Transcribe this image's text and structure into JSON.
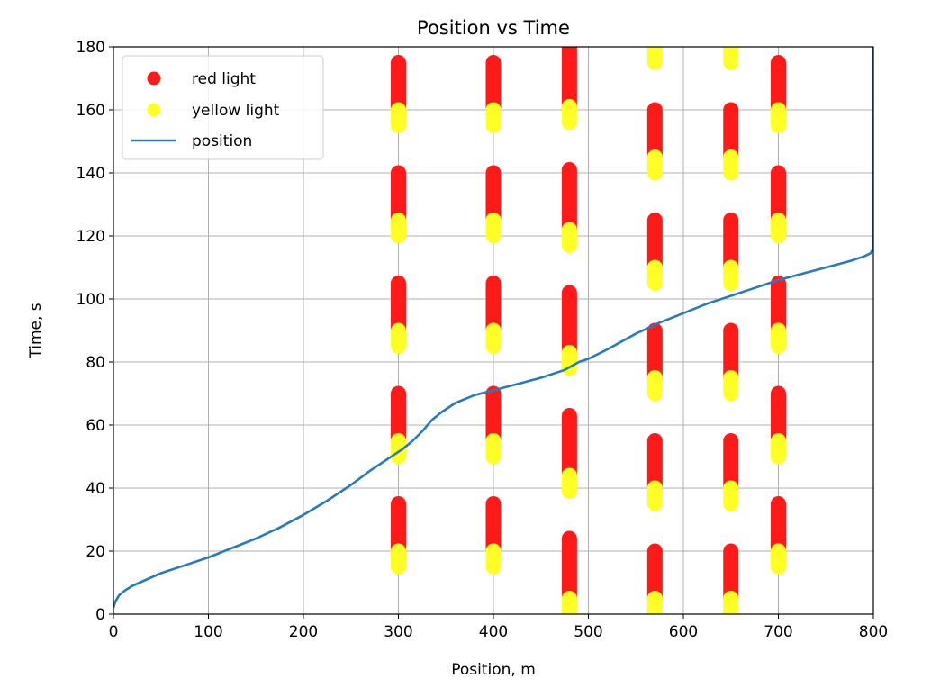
{
  "chart_data": {
    "type": "scatter",
    "title": "Position vs Time",
    "xlabel": "Position, m",
    "ylabel": "Time, s",
    "xlim": [
      0,
      800
    ],
    "ylim": [
      0,
      180
    ],
    "xticks": [
      0,
      100,
      200,
      300,
      400,
      500,
      600,
      700,
      800
    ],
    "yticks": [
      0,
      20,
      40,
      60,
      80,
      100,
      120,
      140,
      160,
      180
    ],
    "grid": true,
    "legend_position": "top-left",
    "legend": [
      {
        "label": "red light",
        "marker": "circle",
        "color": "#ff1a1a"
      },
      {
        "label": "yellow light",
        "marker": "circle",
        "color": "#ffff26"
      },
      {
        "label": "position",
        "marker": "line",
        "color": "#1f77b4"
      }
    ],
    "colors": {
      "red": "#ff1a1a",
      "yellow": "#ffff26",
      "position": "#2a7ab9",
      "grid": "#b0b0b0"
    },
    "signals": [
      {
        "x": 300,
        "red_intervals": [
          [
            20,
            35
          ],
          [
            55,
            70
          ],
          [
            90,
            105
          ],
          [
            125,
            140
          ],
          [
            160,
            175
          ]
        ],
        "yellow_intervals": [
          [
            15,
            20
          ],
          [
            50,
            55
          ],
          [
            85,
            90
          ],
          [
            120,
            125
          ],
          [
            155,
            160
          ]
        ]
      },
      {
        "x": 400,
        "red_intervals": [
          [
            20,
            35
          ],
          [
            55,
            70
          ],
          [
            90,
            105
          ],
          [
            125,
            140
          ],
          [
            160,
            175
          ]
        ],
        "yellow_intervals": [
          [
            15,
            20
          ],
          [
            50,
            55
          ],
          [
            85,
            90
          ],
          [
            120,
            125
          ],
          [
            155,
            160
          ]
        ]
      },
      {
        "x": 480,
        "red_intervals": [
          [
            5,
            24
          ],
          [
            44,
            63
          ],
          [
            83,
            102
          ],
          [
            122,
            141
          ],
          [
            161,
            180
          ]
        ],
        "yellow_intervals": [
          [
            0,
            5
          ],
          [
            39,
            44
          ],
          [
            78,
            83
          ],
          [
            117,
            122
          ],
          [
            156,
            161
          ]
        ]
      },
      {
        "x": 570,
        "red_intervals": [
          [
            5,
            20
          ],
          [
            40,
            55
          ],
          [
            75,
            90
          ],
          [
            110,
            125
          ],
          [
            145,
            160
          ],
          [
            180,
            180
          ]
        ],
        "yellow_intervals": [
          [
            0,
            5
          ],
          [
            35,
            40
          ],
          [
            70,
            75
          ],
          [
            105,
            110
          ],
          [
            140,
            145
          ],
          [
            175,
            180
          ]
        ]
      },
      {
        "x": 650,
        "red_intervals": [
          [
            5,
            20
          ],
          [
            40,
            55
          ],
          [
            75,
            90
          ],
          [
            110,
            125
          ],
          [
            145,
            160
          ],
          [
            180,
            180
          ]
        ],
        "yellow_intervals": [
          [
            0,
            5
          ],
          [
            35,
            40
          ],
          [
            70,
            75
          ],
          [
            105,
            110
          ],
          [
            140,
            145
          ],
          [
            175,
            180
          ]
        ]
      },
      {
        "x": 700,
        "red_intervals": [
          [
            20,
            35
          ],
          [
            55,
            70
          ],
          [
            90,
            105
          ],
          [
            125,
            140
          ],
          [
            160,
            175
          ]
        ],
        "yellow_intervals": [
          [
            15,
            20
          ],
          [
            50,
            55
          ],
          [
            85,
            90
          ],
          [
            120,
            125
          ],
          [
            155,
            160
          ]
        ]
      }
    ],
    "position_series": {
      "x": [
        0,
        2,
        6,
        12,
        20,
        35,
        50,
        75,
        100,
        125,
        150,
        175,
        200,
        225,
        250,
        270,
        290,
        305,
        315,
        325,
        335,
        345,
        360,
        380,
        400,
        425,
        450,
        475,
        490,
        500,
        520,
        550,
        575,
        600,
        625,
        650,
        675,
        700,
        725,
        750,
        775,
        790,
        797,
        800,
        800,
        800
      ],
      "y": [
        2,
        4,
        6,
        7.5,
        9,
        11,
        13,
        15.5,
        18,
        21,
        24,
        27.5,
        31.5,
        36,
        41,
        45.5,
        49.5,
        52.5,
        55,
        58,
        61.5,
        64,
        67,
        69.5,
        71,
        73,
        75,
        77.5,
        80,
        81,
        84,
        89,
        92.5,
        95.5,
        98.5,
        101,
        103.5,
        106,
        108,
        110,
        112,
        113.5,
        114.5,
        116,
        130,
        180
      ]
    }
  }
}
